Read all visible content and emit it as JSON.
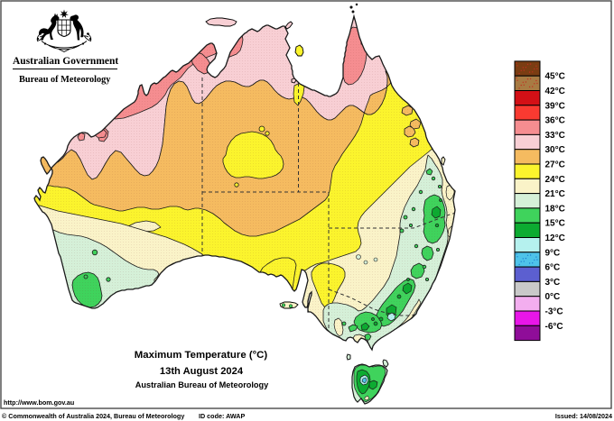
{
  "header": {
    "government": "Australian Government",
    "agency": "Bureau of Meteorology"
  },
  "map_titles": {
    "title": "Maximum Temperature (°C)",
    "date": "13th August 2024",
    "source": "Australian Bureau of Meteorology"
  },
  "url": "http://www.bom.gov.au",
  "footer": {
    "copyright": "© Commonwealth of Australia 2024, Bureau of Meteorology",
    "id_code": "ID code: AWAP",
    "issued": "Issued: 14/08/2024"
  },
  "legend": {
    "unit": "°C",
    "cells": [
      {
        "temp_range": "above 45",
        "color": "#7A3D12",
        "dots": "#C03020"
      },
      {
        "temp_range": "42-45",
        "color": "#A87B43",
        "dots": "#C03020"
      },
      {
        "temp_range": "39-42",
        "color": "#D31016"
      },
      {
        "temp_range": "36-39",
        "color": "#F93A31"
      },
      {
        "temp_range": "33-36",
        "color": "#F58D90"
      },
      {
        "temp_range": "30-33",
        "color": "#F8CFD4"
      },
      {
        "temp_range": "27-30",
        "color": "#F5BB60"
      },
      {
        "temp_range": "24-27",
        "color": "#FBF42D"
      },
      {
        "temp_range": "21-24",
        "color": "#FAF3C8"
      },
      {
        "temp_range": "18-21",
        "color": "#D5F0D8"
      },
      {
        "temp_range": "15-18",
        "color": "#3FD35C"
      },
      {
        "temp_range": "12-15",
        "color": "#0CAB31"
      },
      {
        "temp_range": "9-12",
        "color": "#B5F1EE"
      },
      {
        "temp_range": "6-9",
        "color": "#4EC3E9",
        "dots": "#2080D0"
      },
      {
        "temp_range": "3-6",
        "color": "#5C5FD0"
      },
      {
        "temp_range": "0-3",
        "color": "#C9C9C9"
      },
      {
        "temp_range": "-3-0",
        "color": "#F3AEEF"
      },
      {
        "temp_range": "-6--3",
        "color": "#E816E8"
      },
      {
        "temp_range": "below -6",
        "color": "#8F0D99"
      }
    ],
    "labels": [
      "45°C",
      "42°C",
      "39°C",
      "36°C",
      "33°C",
      "30°C",
      "27°C",
      "24°C",
      "21°C",
      "18°C",
      "15°C",
      "12°C",
      "9°C",
      "6°C",
      "3°C",
      "0°C",
      "-3°C",
      "-6°C"
    ]
  },
  "palette": {
    "sea": "#FFFFFF",
    "outline": "#111111",
    "frame": "#555555",
    "salmon": "#F58D90",
    "pink": "#F8CFD4",
    "orange": "#F5BB60",
    "yellow": "#FBF42D",
    "cream": "#FAF3C8",
    "palegreen": "#D5F0D8",
    "green": "#3FD35C",
    "darkgreen": "#0CAB31",
    "palecyan": "#B5F1EE",
    "cyan": "#4EC3E9"
  }
}
